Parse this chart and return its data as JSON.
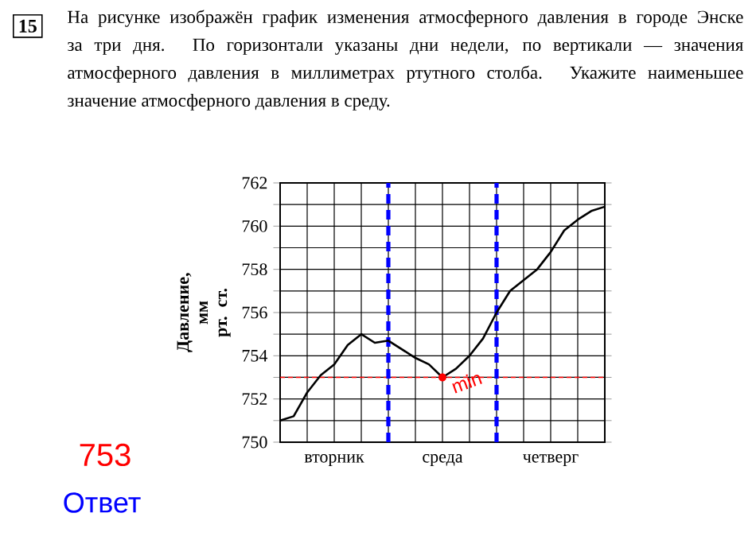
{
  "chart_data": {
    "type": "line",
    "title": "На рисунке изображён график изменения атмосферного давления в городе Энске за три дня. По горизонтали указаны дни недели, по вертикали — значения атмосферного давления в миллиметрах ртутного столба. Укажите наименьшее значение атмосферного давления в среду.",
    "ylabel": "Давление, мм рт. ст.",
    "annotations": [
      "15",
      {
        "text": "min",
        "x": "среда",
        "y": 753
      },
      "753",
      "Ответ"
    ],
    "categories": [
      null,
      null,
      null,
      null,
      "вторник",
      null,
      null,
      null,
      null,
      null,
      null,
      null,
      "среда",
      null,
      null,
      null,
      null,
      null,
      null,
      null,
      "четверг",
      null,
      null,
      null,
      null
    ],
    "series": [
      {
        "color": "#000000",
        "values": [
          751.0,
          751.2,
          752.3,
          753.1,
          753.6,
          754.5,
          755.0,
          754.6,
          754.7,
          754.3,
          753.9,
          753.6,
          753.0,
          753.4,
          754.0,
          754.8,
          756.0,
          757.0,
          757.5,
          758.0,
          758.8,
          759.8,
          760.3,
          760.7,
          760.9
        ]
      }
    ],
    "ylim": [
      750,
      762
    ],
    "yticks": [
      750,
      {
        "value": 751,
        "label": null
      },
      752,
      {
        "value": 753,
        "label": null
      },
      754,
      {
        "value": 755,
        "label": null
      },
      756,
      {
        "value": 757,
        "label": null
      },
      758,
      {
        "value": 759,
        "label": null
      },
      760,
      {
        "value": 761,
        "label": null
      },
      762
    ],
    "grid": true,
    "ref_lines": [
      {
        "axis": "y",
        "value": 753,
        "color": "#ff0000",
        "line_style": "dashed"
      }
    ]
  }
}
